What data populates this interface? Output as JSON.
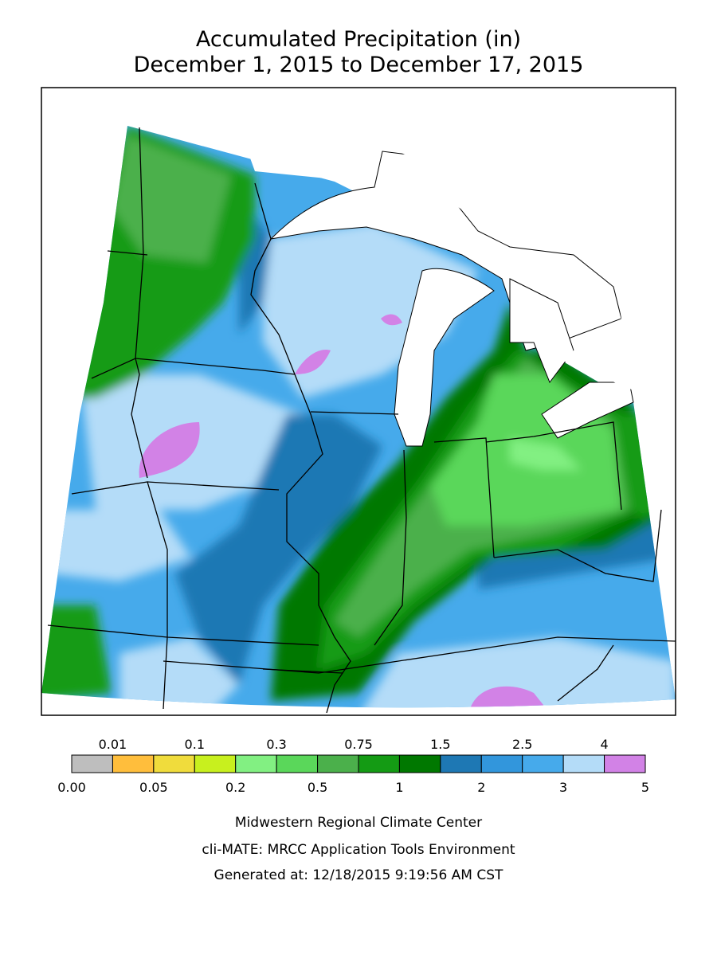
{
  "title": "Accumulated Precipitation (in)",
  "subtitle": "December 1, 2015 to December 17, 2015",
  "legend": {
    "breaks": [
      {
        "value": 0,
        "label": "0.00"
      },
      0.01,
      0.05,
      0.1,
      0.2,
      0.3,
      0.5,
      0.75,
      1,
      1.5,
      2,
      2.5,
      3,
      4,
      5
    ],
    "colors": [
      "#bebebe",
      "#ffbe3c",
      "#f0dc3c",
      "#c8f01e",
      "#82f082",
      "#5ad75a",
      "#4bb04b",
      "#149b14",
      "#007800",
      "#1e78b4",
      "#3296dc",
      "#46aaeb",
      "#b4dcf8",
      "#d282e6"
    ]
  },
  "footer": [
    "Midwestern Regional Climate Center",
    "cli-MATE: MRCC Application Tools Environment",
    "Generated at: 12/18/2015 9:19:56 AM CST"
  ]
}
